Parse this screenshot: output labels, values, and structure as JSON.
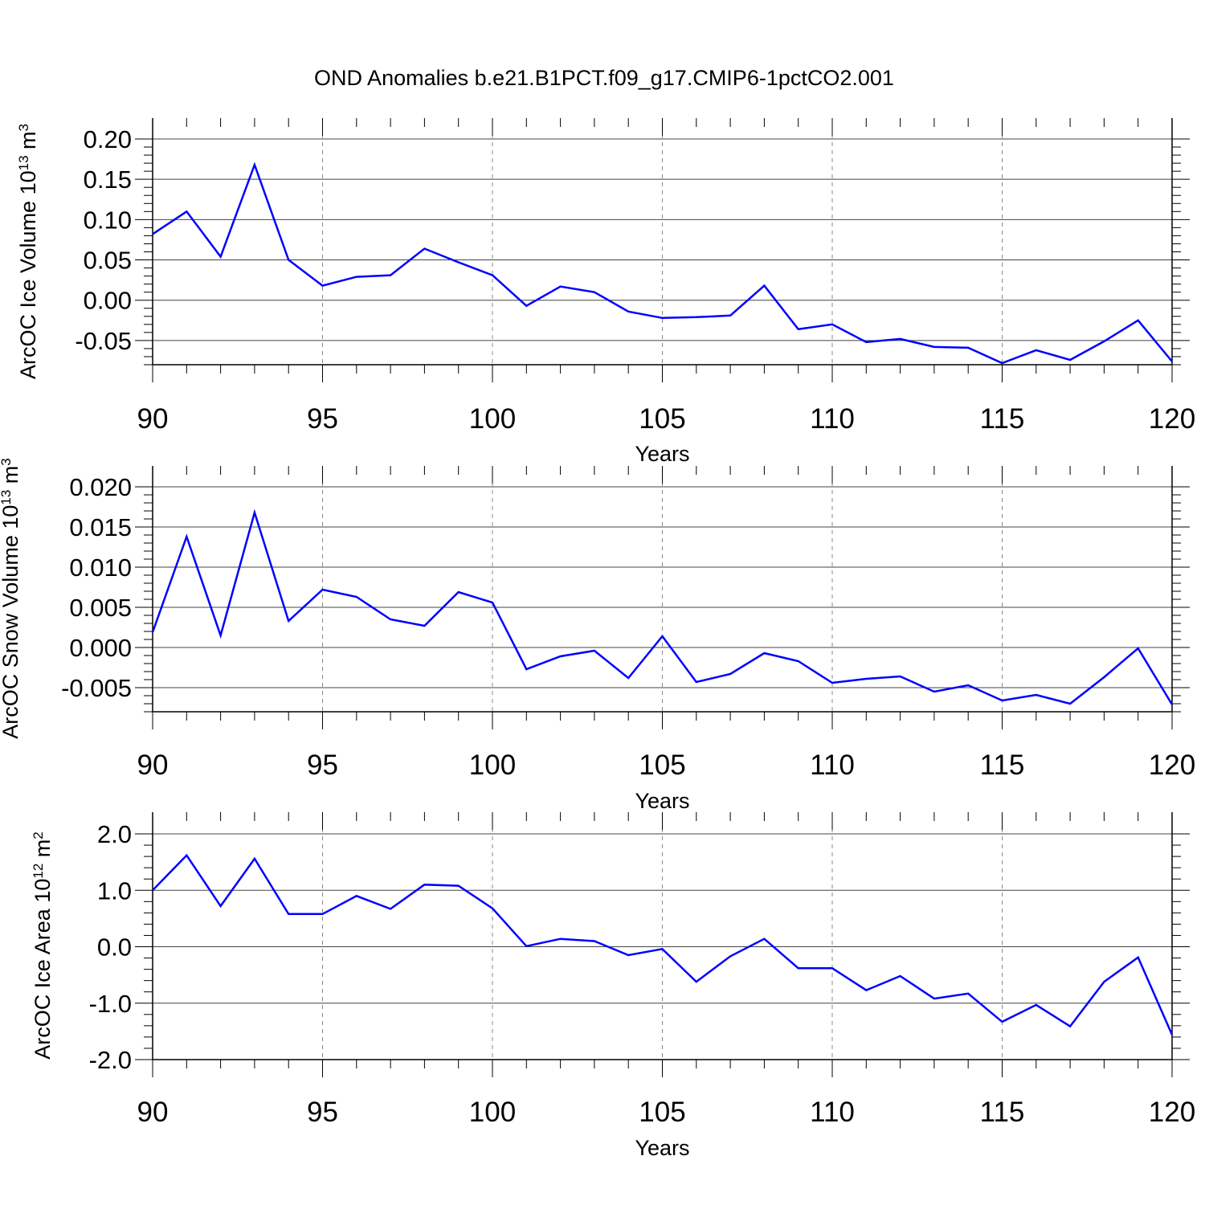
{
  "title": "OND Anomalies b.e21.B1PCT.f09_g17.CMIP6-1pctCO2.001",
  "line_color": "#0000ff",
  "chart_data": [
    {
      "type": "line",
      "ylabel_main": "ArcOC Ice Volume 10",
      "ylabel_sup": "13",
      "ylabel_unit": " m",
      "ylabel_unit_sup": "3",
      "xlabel": "Years",
      "xlim": [
        90,
        120
      ],
      "ylim": [
        -0.08,
        0.2
      ],
      "xticks": [
        90,
        95,
        100,
        105,
        110,
        115,
        120
      ],
      "xtick_labels": [
        "90",
        "95",
        "100",
        "105",
        "110",
        "115",
        "120"
      ],
      "yticks": [
        0.2,
        0.15,
        0.1,
        0.05,
        0.0,
        -0.05
      ],
      "ytick_labels": [
        "0.20",
        "0.15",
        "0.10",
        "0.05",
        "0.00",
        "-0.05"
      ],
      "yminor_step": 0.01,
      "x": [
        90,
        91,
        92,
        93,
        94,
        95,
        96,
        97,
        98,
        99,
        100,
        101,
        102,
        103,
        104,
        105,
        106,
        107,
        108,
        109,
        110,
        111,
        112,
        113,
        114,
        115,
        116,
        117,
        118,
        119,
        120
      ],
      "values": [
        0.082,
        0.11,
        0.054,
        0.168,
        0.05,
        0.018,
        0.029,
        0.031,
        0.064,
        0.047,
        0.031,
        -0.007,
        0.017,
        0.01,
        -0.014,
        -0.022,
        -0.021,
        -0.019,
        0.018,
        -0.036,
        -0.03,
        -0.052,
        -0.048,
        -0.058,
        -0.059,
        -0.078,
        -0.062,
        -0.074,
        -0.051,
        -0.025,
        -0.076
      ]
    },
    {
      "type": "line",
      "ylabel_main": "ArcOC Snow Volume 10",
      "ylabel_sup": "13",
      "ylabel_unit": " m",
      "ylabel_unit_sup": "3",
      "xlabel": "Years",
      "xlim": [
        90,
        120
      ],
      "ylim": [
        -0.008,
        0.02
      ],
      "xticks": [
        90,
        95,
        100,
        105,
        110,
        115,
        120
      ],
      "xtick_labels": [
        "90",
        "95",
        "100",
        "105",
        "110",
        "115",
        "120"
      ],
      "yticks": [
        0.02,
        0.015,
        0.01,
        0.005,
        0.0,
        -0.005
      ],
      "ytick_labels": [
        "0.020",
        "0.015",
        "0.010",
        "0.005",
        "0.000",
        "-0.005"
      ],
      "yminor_step": 0.001,
      "x": [
        90,
        91,
        92,
        93,
        94,
        95,
        96,
        97,
        98,
        99,
        100,
        101,
        102,
        103,
        104,
        105,
        106,
        107,
        108,
        109,
        110,
        111,
        112,
        113,
        114,
        115,
        116,
        117,
        118,
        119,
        120
      ],
      "values": [
        0.0019,
        0.0138,
        0.0015,
        0.0168,
        0.0033,
        0.0072,
        0.0063,
        0.0035,
        0.0027,
        0.0069,
        0.0056,
        -0.0027,
        -0.0011,
        -0.0004,
        -0.0038,
        0.0014,
        -0.0043,
        -0.0033,
        -0.0007,
        -0.0017,
        -0.0044,
        -0.0039,
        -0.0036,
        -0.0055,
        -0.0047,
        -0.0066,
        -0.0059,
        -0.007,
        -0.0037,
        -0.0001,
        -0.0071
      ]
    },
    {
      "type": "line",
      "ylabel_main": "ArcOC Ice Area 10",
      "ylabel_sup": "12",
      "ylabel_unit": " m",
      "ylabel_unit_sup": "2",
      "xlabel": "Years",
      "xlim": [
        90,
        120
      ],
      "ylim": [
        -2.0,
        2.0
      ],
      "xticks": [
        90,
        95,
        100,
        105,
        110,
        115,
        120
      ],
      "xtick_labels": [
        "90",
        "95",
        "100",
        "105",
        "110",
        "115",
        "120"
      ],
      "yticks": [
        2.0,
        1.0,
        0.0,
        -1.0,
        -2.0
      ],
      "ytick_labels": [
        "2.0",
        "1.0",
        "0.0",
        "-1.0",
        "-2.0"
      ],
      "yminor_step": 0.2,
      "x": [
        90,
        91,
        92,
        93,
        94,
        95,
        96,
        97,
        98,
        99,
        100,
        101,
        102,
        103,
        104,
        105,
        106,
        107,
        108,
        109,
        110,
        111,
        112,
        113,
        114,
        115,
        116,
        117,
        118,
        119,
        120
      ],
      "values": [
        1.0,
        1.62,
        0.72,
        1.56,
        0.58,
        0.58,
        0.9,
        0.67,
        1.1,
        1.08,
        0.68,
        0.01,
        0.14,
        0.1,
        -0.15,
        -0.04,
        -0.62,
        -0.17,
        0.14,
        -0.38,
        -0.38,
        -0.77,
        -0.52,
        -0.92,
        -0.83,
        -1.33,
        -1.03,
        -1.41,
        -0.62,
        -0.19,
        -1.56
      ]
    }
  ]
}
